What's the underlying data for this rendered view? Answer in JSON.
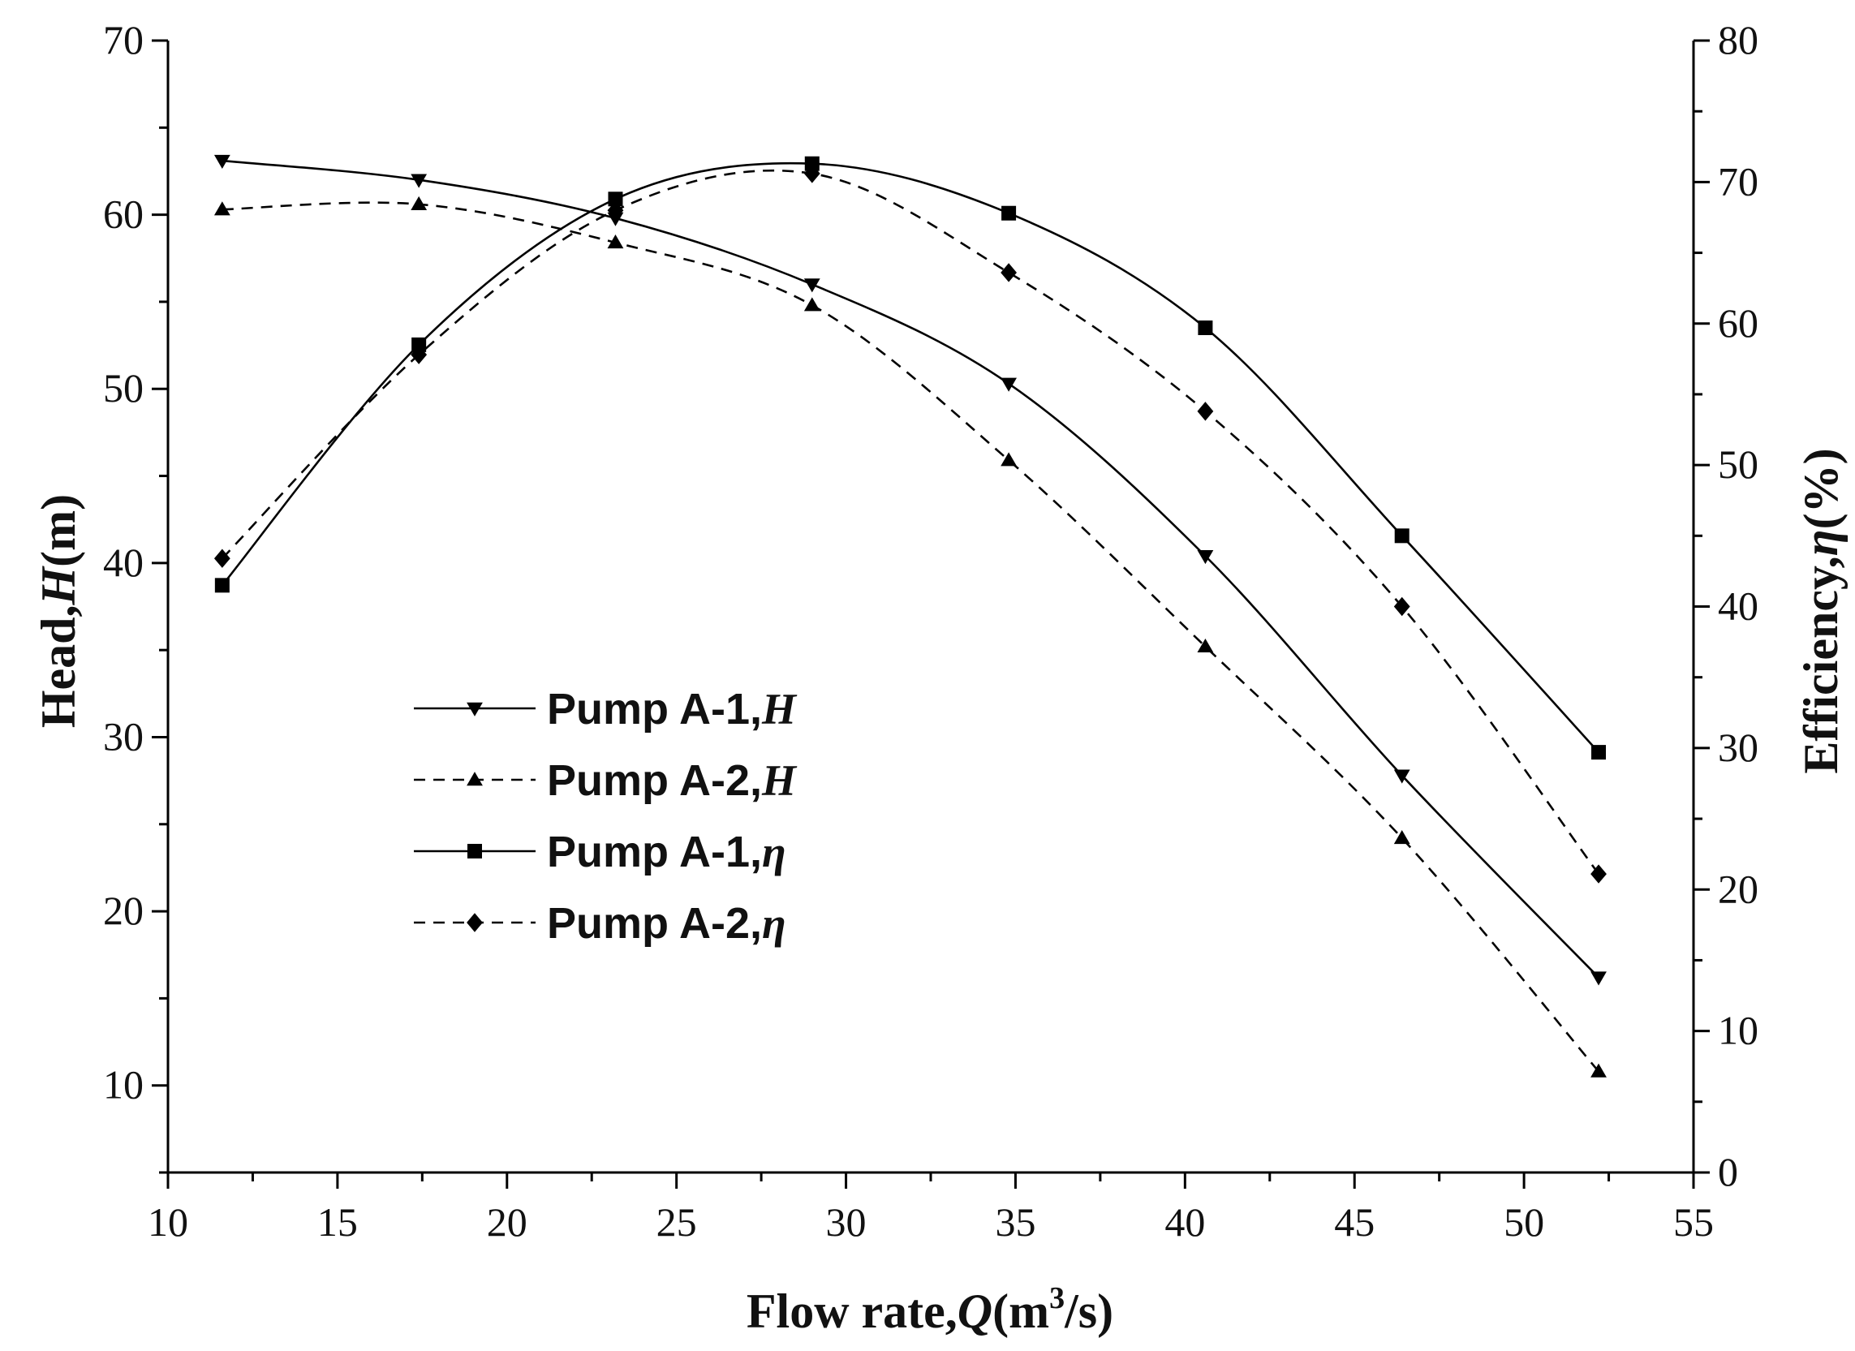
{
  "chart_data": {
    "type": "line",
    "xlabel": "Flow rate,Q(m³/s)",
    "ylabel_left": "Head,H(m)",
    "ylabel_right": "Efficiency,η(%)",
    "x_axis": {
      "title_prefix": "Flow rate,",
      "title_var": "Q",
      "title_mid": "(m",
      "title_sup": "3",
      "title_suffix": "/s)",
      "range": [
        10,
        55
      ],
      "ticks": [
        10,
        15,
        20,
        25,
        30,
        35,
        40,
        45,
        50,
        55
      ]
    },
    "y_left_axis": {
      "title_prefix": "Head,",
      "title_var": "H",
      "title_suffix": "(m)",
      "range": [
        5,
        70
      ],
      "ticks": [
        10,
        20,
        30,
        40,
        50,
        60,
        70
      ]
    },
    "y_right_axis": {
      "title_prefix": "Efficiency,",
      "title_var": "η",
      "title_suffix": "(%)",
      "range": [
        0,
        80
      ],
      "ticks": [
        0,
        10,
        20,
        30,
        40,
        50,
        60,
        70,
        80
      ]
    },
    "x": [
      11.6,
      17.4,
      23.2,
      29.0,
      34.8,
      40.6,
      46.4,
      52.2
    ],
    "series": [
      {
        "name": "Pump A-1,H",
        "name_prefix": "Pump A-1,",
        "name_var": "H",
        "axis": "left",
        "marker": "triangle-down",
        "dash": "solid",
        "values": [
          63.1,
          62.0,
          59.8,
          56.0,
          50.3,
          40.4,
          27.8,
          16.2
        ]
      },
      {
        "name": "Pump A-2,H",
        "name_prefix": "Pump A-2,",
        "name_var": "H",
        "axis": "left",
        "marker": "triangle-up",
        "dash": "dashed",
        "values": [
          60.3,
          60.6,
          58.4,
          54.8,
          45.9,
          35.2,
          24.2,
          10.8
        ]
      },
      {
        "name": "Pump A-1,η",
        "name_prefix": "Pump A-1,",
        "name_var": "η",
        "axis": "right",
        "marker": "square",
        "dash": "solid",
        "values": [
          41.5,
          58.5,
          68.8,
          71.3,
          67.8,
          59.7,
          45.0,
          29.7
        ]
      },
      {
        "name": "Pump A-2,η",
        "name_prefix": "Pump A-2,",
        "name_var": "η",
        "axis": "right",
        "marker": "diamond",
        "dash": "dashed",
        "values": [
          43.4,
          57.8,
          68.0,
          70.6,
          63.6,
          53.8,
          40.0,
          21.1
        ]
      }
    ],
    "legend_position": "center-left",
    "grid": false
  }
}
